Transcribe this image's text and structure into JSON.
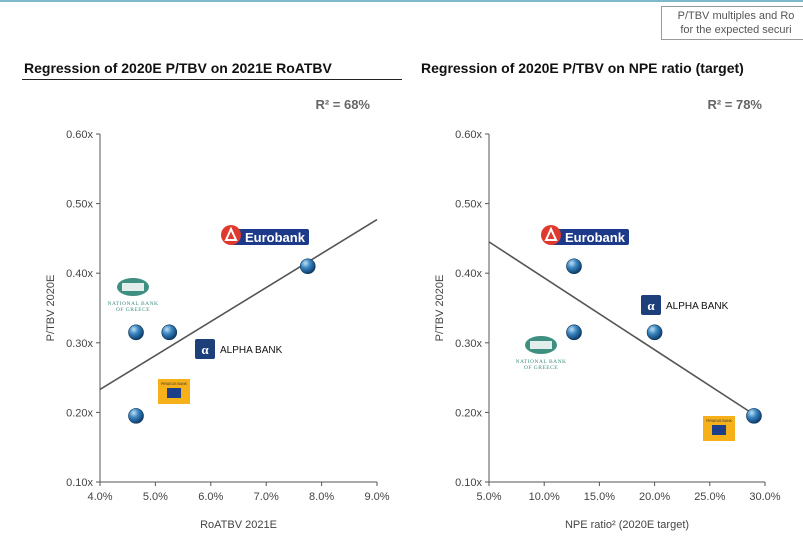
{
  "note": {
    "line1": "P/TBV multiples and Ro",
    "line2": "for the expected securi"
  },
  "chart_data": [
    {
      "type": "scatter",
      "title": "Regression of 2020E P/TBV on 2021E RoATBV",
      "annotation": "R² = 68%",
      "xlabel": "RoATBV 2021E",
      "ylabel": "P/TBV 2020E",
      "xlim": [
        4.0,
        9.0
      ],
      "ylim": [
        0.1,
        0.6
      ],
      "xticks": [
        "4.0%",
        "5.0%",
        "6.0%",
        "7.0%",
        "8.0%",
        "9.0%"
      ],
      "yticks": [
        "0.10x",
        "0.20x",
        "0.30x",
        "0.40x",
        "0.50x",
        "0.60x"
      ],
      "points": [
        {
          "x": 7.75,
          "y": 0.41,
          "label": "Eurobank"
        },
        {
          "x": 4.65,
          "y": 0.315,
          "label": "National Bank of Greece"
        },
        {
          "x": 5.25,
          "y": 0.315,
          "label": "Alpha Bank"
        },
        {
          "x": 4.65,
          "y": 0.195,
          "label": "Piraeus Bank"
        }
      ],
      "trendline": [
        [
          4.0,
          0.233
        ],
        [
          9.0,
          0.477
        ]
      ],
      "logos": {
        "eurobank": "Eurobank",
        "alpha": "ALPHA BANK",
        "nbg1": "NATIONAL BANK",
        "nbg2": "OF GREECE",
        "piraeus": "PIRAEUS BANK"
      }
    },
    {
      "type": "scatter",
      "title": "Regression of 2020E P/TBV on NPE ratio (target)",
      "annotation": "R² = 78%",
      "xlabel": "NPE ratio² (2020E target)",
      "ylabel": "P/TBV 2020E",
      "xlim": [
        5.0,
        30.0
      ],
      "ylim": [
        0.1,
        0.6
      ],
      "xticks": [
        "5.0%",
        "10.0%",
        "15.0%",
        "20.0%",
        "25.0%",
        "30.0%"
      ],
      "yticks": [
        "0.10x",
        "0.20x",
        "0.30x",
        "0.40x",
        "0.50x",
        "0.60x"
      ],
      "points": [
        {
          "x": 12.7,
          "y": 0.41,
          "label": "Eurobank"
        },
        {
          "x": 12.7,
          "y": 0.315,
          "label": "National Bank of Greece"
        },
        {
          "x": 20.0,
          "y": 0.315,
          "label": "Alpha Bank"
        },
        {
          "x": 29.0,
          "y": 0.195,
          "label": "Piraeus Bank"
        }
      ],
      "trendline": [
        [
          5.0,
          0.445
        ],
        [
          29.0,
          0.197
        ]
      ],
      "logos": {
        "eurobank": "Eurobank",
        "alpha": "ALPHA BANK",
        "nbg1": "NATIONAL BANK",
        "nbg2": "OF GREECE",
        "piraeus": "PIRAEUS BANK"
      }
    }
  ]
}
